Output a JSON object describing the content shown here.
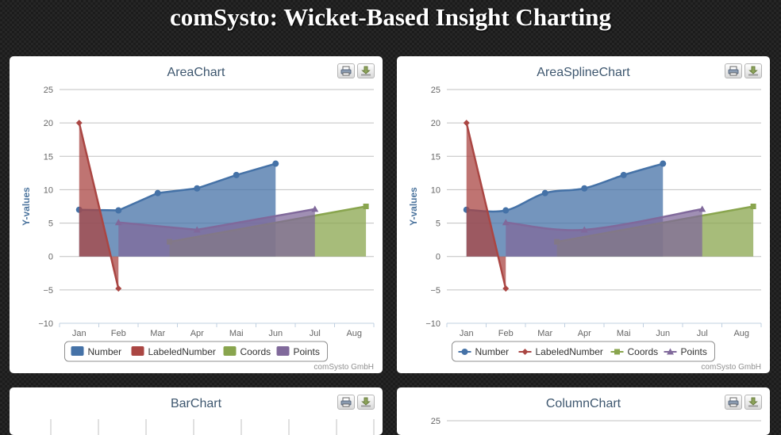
{
  "page": {
    "title": "comSysto: Wicket-Based Insight Charting"
  },
  "colors": {
    "number": "#4572a7",
    "labeled": "#aa4643",
    "coords": "#89a54e",
    "points": "#80699b",
    "title": "#3e576f",
    "axis_title": "#4d759e",
    "label": "#666666",
    "grid": "#c0c0c0"
  },
  "export": {
    "print_icon": "printer-icon",
    "download_icon": "download-icon"
  },
  "charts": [
    {
      "title": "AreaChart",
      "credits": "comSysto GmbH",
      "legend": [
        {
          "label": "Number"
        },
        {
          "label": "LabeledNumber"
        },
        {
          "label": "Coords"
        },
        {
          "label": "Points"
        }
      ]
    },
    {
      "title": "AreaSplineChart",
      "credits": "comSysto GmbH",
      "legend": [
        {
          "label": "Number"
        },
        {
          "label": "LabeledNumber"
        },
        {
          "label": "Coords"
        },
        {
          "label": "Points"
        }
      ]
    },
    {
      "title": "BarChart"
    },
    {
      "title": "ColumnChart",
      "first_tick": "25"
    }
  ],
  "chart_data": [
    {
      "type": "area",
      "title": "AreaChart",
      "ylabel": "Y-values",
      "categories": [
        "Jan",
        "Feb",
        "Mar",
        "Apr",
        "Mai",
        "Jun",
        "Jul",
        "Aug"
      ],
      "yticks": [
        "25",
        "20",
        "15",
        "10",
        "5",
        "0",
        "−5",
        "−10"
      ],
      "ylim": [
        -10,
        25
      ],
      "grid": true,
      "legend_position": "bottom",
      "series": [
        {
          "name": "Number",
          "x": [
            0,
            1,
            2,
            3,
            4,
            5
          ],
          "values": [
            7,
            6.9,
            9.5,
            10.2,
            12.2,
            13.9
          ],
          "marker": "circle"
        },
        {
          "name": "LabeledNumber",
          "x": [
            0,
            1
          ],
          "values": [
            20,
            -4.8
          ],
          "marker": "diamond"
        },
        {
          "name": "Coords",
          "x": [
            2.3,
            7.3
          ],
          "values": [
            2.2,
            7.5
          ],
          "marker": "square"
        },
        {
          "name": "Points",
          "x": [
            1,
            3,
            6
          ],
          "values": [
            5.1,
            4,
            7.1
          ],
          "marker": "triangle"
        }
      ]
    },
    {
      "type": "area",
      "title": "AreaSplineChart",
      "ylabel": "Y-values",
      "categories": [
        "Jan",
        "Feb",
        "Mar",
        "Apr",
        "Mai",
        "Jun",
        "Jul",
        "Aug"
      ],
      "yticks": [
        "25",
        "20",
        "15",
        "10",
        "5",
        "0",
        "−5",
        "−10"
      ],
      "ylim": [
        -10,
        25
      ],
      "grid": true,
      "legend_position": "bottom",
      "spline": true,
      "series": [
        {
          "name": "Number",
          "x": [
            0,
            1,
            2,
            3,
            4,
            5
          ],
          "values": [
            7,
            6.9,
            9.5,
            10.2,
            12.2,
            13.9
          ],
          "marker": "circle"
        },
        {
          "name": "LabeledNumber",
          "x": [
            0,
            1
          ],
          "values": [
            20,
            -4.8
          ],
          "marker": "diamond"
        },
        {
          "name": "Coords",
          "x": [
            2.3,
            7.3
          ],
          "values": [
            2.2,
            7.5
          ],
          "marker": "square"
        },
        {
          "name": "Points",
          "x": [
            1,
            3,
            6
          ],
          "values": [
            5.1,
            4,
            7.1
          ],
          "marker": "triangle"
        }
      ]
    },
    {
      "type": "bar",
      "title": "BarChart"
    },
    {
      "type": "bar",
      "title": "ColumnChart",
      "yticks": [
        "25"
      ]
    }
  ]
}
